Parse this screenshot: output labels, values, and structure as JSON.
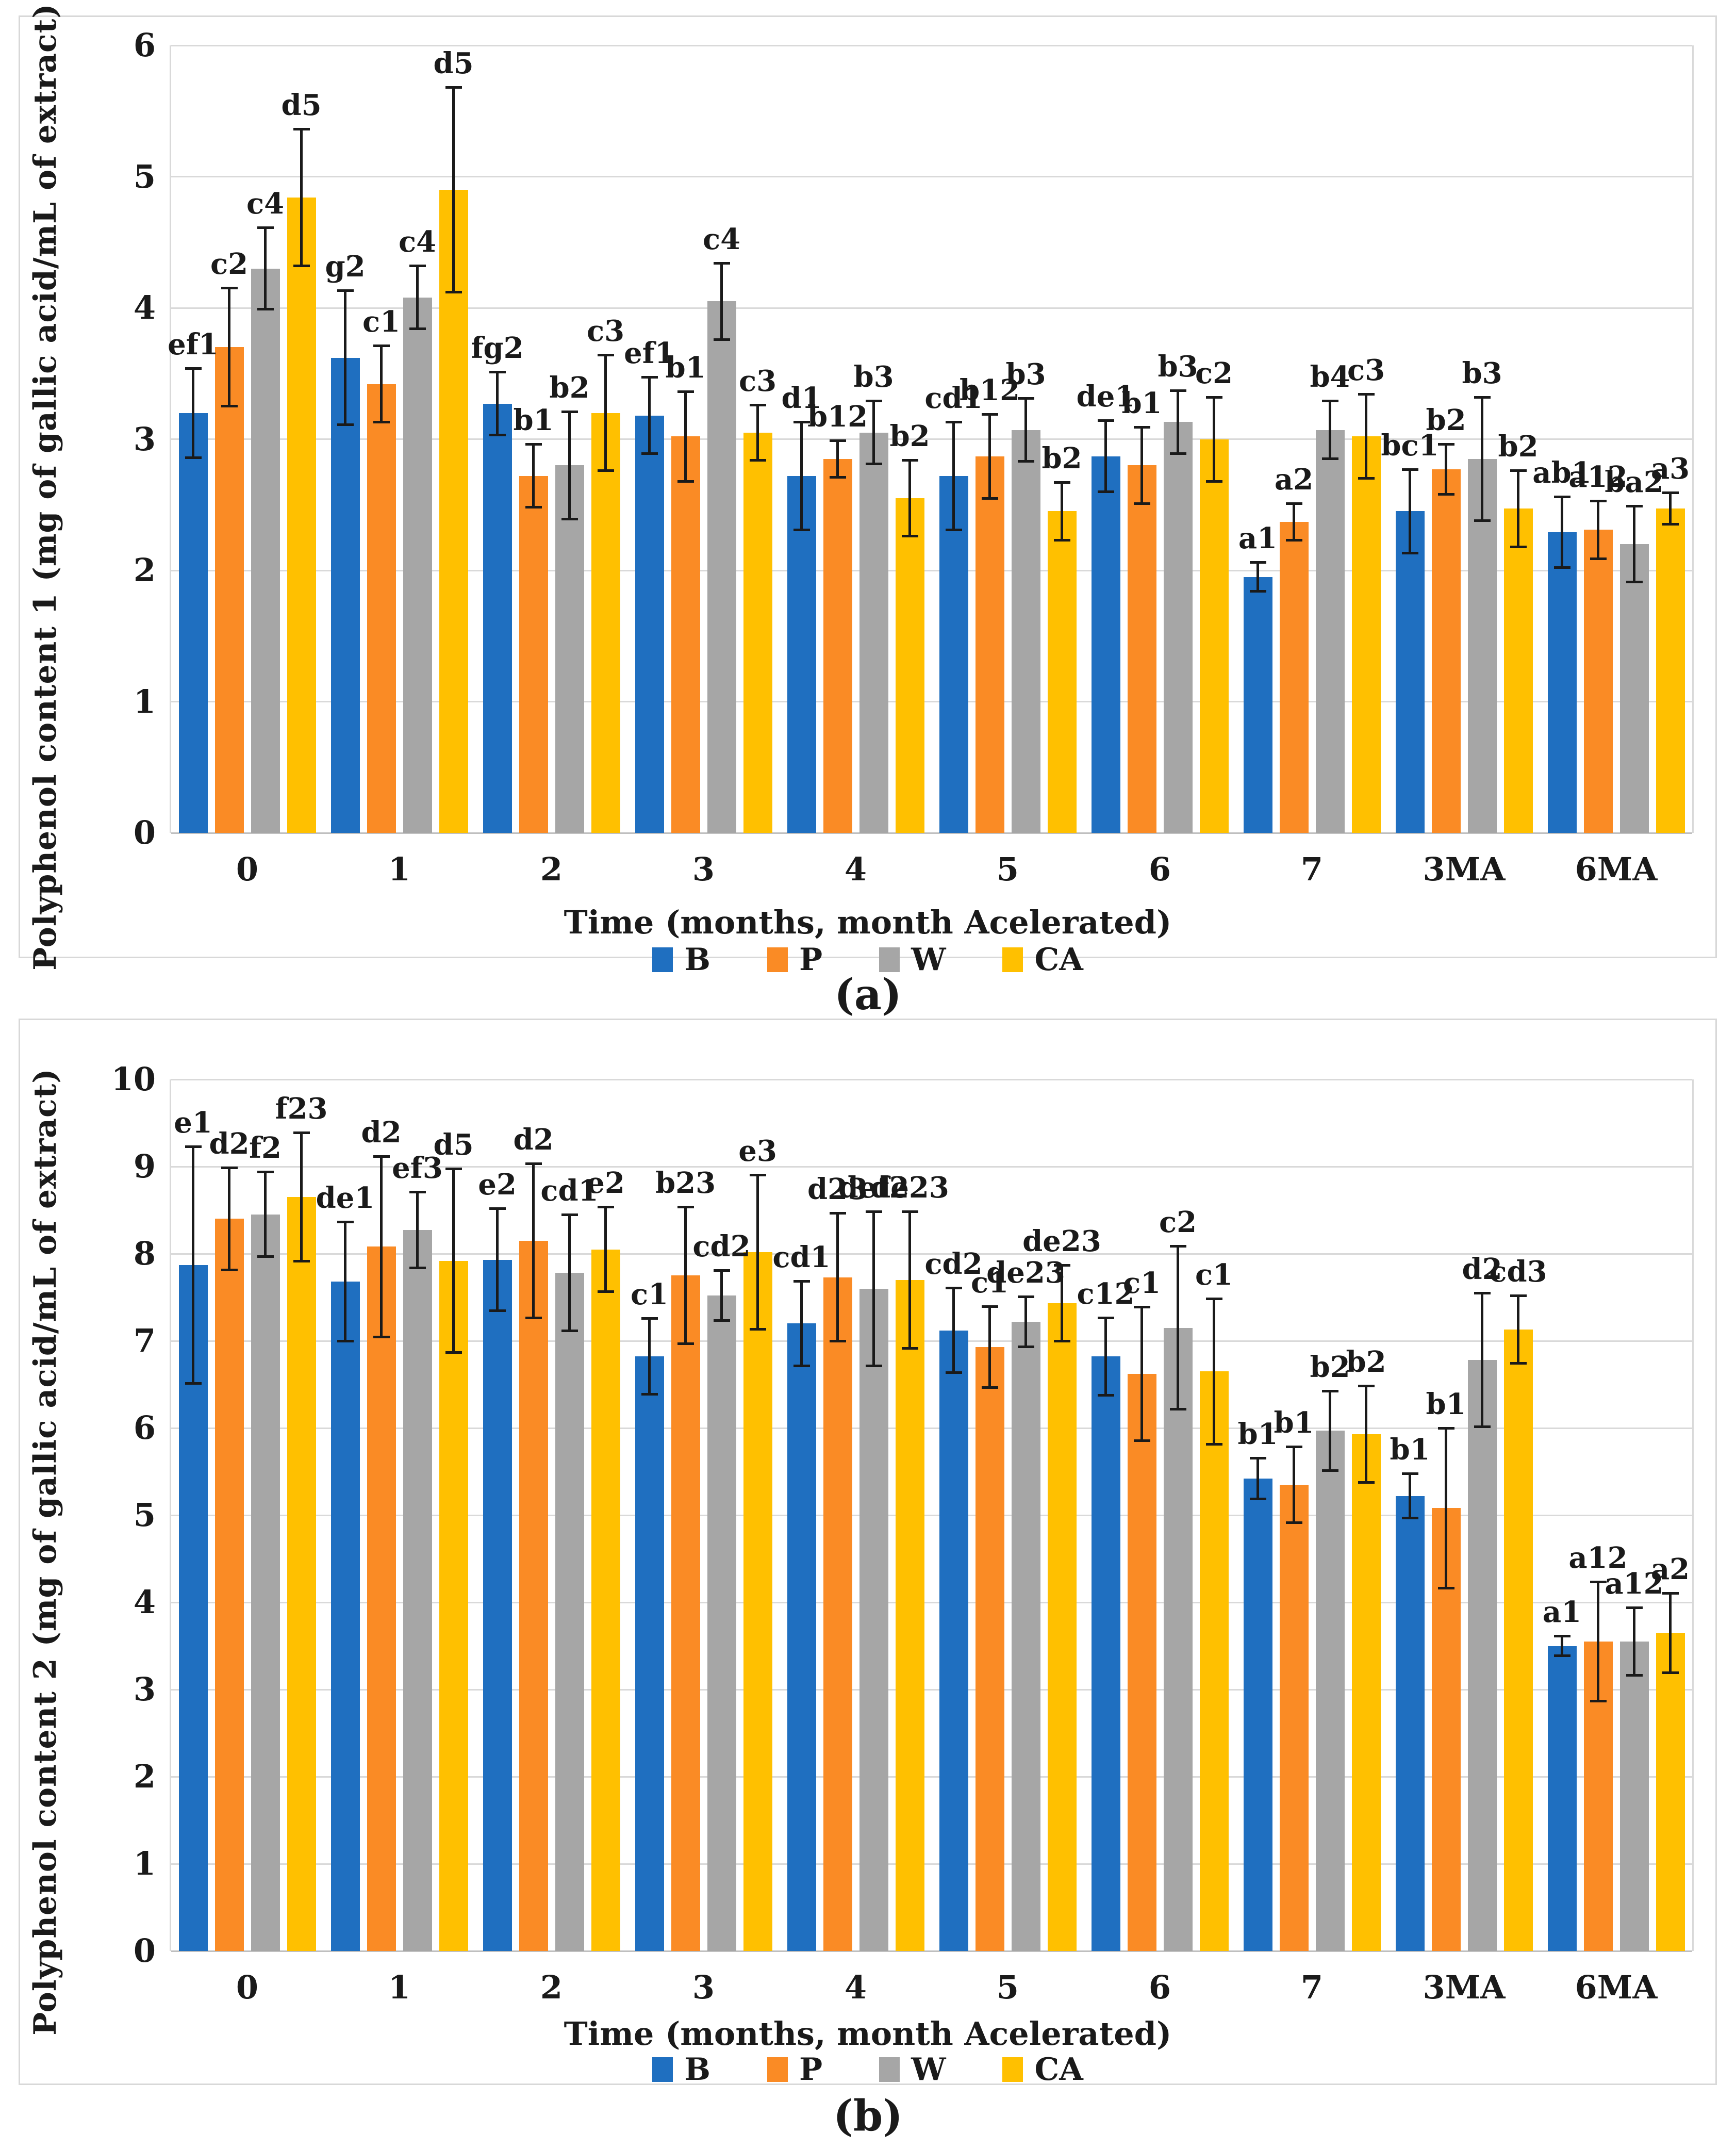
{
  "captions": {
    "a": "(a)",
    "b": "(b)"
  },
  "chart_data": [
    {
      "type": "bar",
      "panel": "a",
      "xlabel": "Time (months, month Acelerated)",
      "ylabel": "Polyphenol content 1 (mg of gallic acid/mL of extract)",
      "ylim": [
        0,
        6
      ],
      "ytick_step": 1,
      "grid": true,
      "legend_position": "bottom",
      "categories": [
        "0",
        "1",
        "2",
        "3",
        "4",
        "5",
        "6",
        "7",
        "3MA",
        "6MA"
      ],
      "series": [
        {
          "name": "B",
          "color": "#1F6FC0",
          "values": [
            3.2,
            3.62,
            3.27,
            3.18,
            2.72,
            2.72,
            2.87,
            1.95,
            2.45,
            2.29
          ],
          "errors": [
            0.35,
            0.52,
            0.25,
            0.3,
            0.42,
            0.42,
            0.28,
            0.12,
            0.33,
            0.28
          ],
          "labels": [
            "ef1",
            "g2",
            "fg2",
            "ef1",
            "d1",
            "cd1",
            "de1",
            "a1",
            "bc1",
            "ab1"
          ]
        },
        {
          "name": "P",
          "color": "#FA8B25",
          "values": [
            3.7,
            3.42,
            2.72,
            3.02,
            2.85,
            2.87,
            2.8,
            2.37,
            2.77,
            2.31
          ],
          "errors": [
            0.46,
            0.3,
            0.25,
            0.35,
            0.15,
            0.33,
            0.3,
            0.15,
            0.2,
            0.23
          ],
          "labels": [
            "c2",
            "c1",
            "b1",
            "b1",
            "b12",
            "b12",
            "b1",
            "a2",
            "b2",
            "a12"
          ]
        },
        {
          "name": "W",
          "color": "#A6A6A6",
          "values": [
            4.3,
            4.08,
            2.8,
            4.05,
            3.05,
            3.07,
            3.13,
            3.07,
            2.85,
            2.2
          ],
          "errors": [
            0.32,
            0.25,
            0.42,
            0.3,
            0.25,
            0.25,
            0.25,
            0.23,
            0.48,
            0.3
          ],
          "labels": [
            "c4",
            "c4",
            "b2",
            "c4",
            "b3",
            "b3",
            "b3",
            "b4",
            "b3",
            "ba2"
          ]
        },
        {
          "name": "CA",
          "color": "#FFC000",
          "values": [
            4.84,
            4.9,
            3.2,
            3.05,
            2.55,
            2.45,
            3.0,
            3.02,
            2.47,
            2.47
          ],
          "errors": [
            0.53,
            0.79,
            0.45,
            0.22,
            0.3,
            0.23,
            0.33,
            0.33,
            0.3,
            0.13
          ],
          "labels": [
            "d5",
            "d5",
            "c3",
            "c3",
            "b2",
            "b2",
            "c2",
            "c3",
            "b2",
            "a3"
          ]
        }
      ]
    },
    {
      "type": "bar",
      "panel": "b",
      "xlabel": "Time (months, month Acelerated)",
      "ylabel": "Polyphenol content 2 (mg of gallic acid/mL of extract)",
      "ylim": [
        0,
        10
      ],
      "ytick_step": 1,
      "grid": true,
      "legend_position": "bottom",
      "categories": [
        "0",
        "1",
        "2",
        "3",
        "4",
        "5",
        "6",
        "7",
        "3MA",
        "6MA"
      ],
      "series": [
        {
          "name": "B",
          "color": "#1F6FC0",
          "values": [
            7.87,
            7.68,
            7.93,
            6.82,
            7.2,
            7.12,
            6.82,
            5.42,
            5.22,
            3.5
          ],
          "errors": [
            1.37,
            0.7,
            0.6,
            0.45,
            0.5,
            0.5,
            0.46,
            0.25,
            0.27,
            0.13
          ],
          "labels": [
            "e1",
            "de1",
            "e2",
            "c1",
            "cd1",
            "cd2",
            "c12",
            "b1",
            "b1",
            "a1"
          ]
        },
        {
          "name": "P",
          "color": "#FA8B25",
          "values": [
            8.4,
            8.08,
            8.15,
            7.75,
            7.73,
            6.93,
            6.62,
            5.35,
            5.08,
            3.55
          ],
          "errors": [
            0.6,
            1.05,
            0.9,
            0.8,
            0.75,
            0.48,
            0.78,
            0.45,
            0.93,
            0.7
          ],
          "labels": [
            "d2",
            "d2",
            "d2",
            "b23",
            "d23",
            "c1",
            "c1",
            "b1",
            "b1",
            "a12"
          ]
        },
        {
          "name": "W",
          "color": "#A6A6A6",
          "values": [
            8.45,
            8.27,
            7.78,
            7.52,
            7.6,
            7.22,
            7.15,
            5.97,
            6.78,
            3.55
          ],
          "errors": [
            0.5,
            0.45,
            0.68,
            0.3,
            0.9,
            0.3,
            0.95,
            0.47,
            0.78,
            0.4
          ],
          "labels": [
            "f2",
            "ef3",
            "cd1",
            "cd2",
            "def2",
            "de23",
            "c2",
            "b2",
            "d2",
            "a12"
          ]
        },
        {
          "name": "CA",
          "color": "#FFC000",
          "values": [
            8.65,
            7.92,
            8.05,
            8.02,
            7.7,
            7.43,
            6.65,
            5.93,
            7.13,
            3.65
          ],
          "errors": [
            0.75,
            1.07,
            0.5,
            0.9,
            0.8,
            0.45,
            0.85,
            0.57,
            0.4,
            0.47
          ],
          "labels": [
            "f23",
            "d5",
            "e2",
            "e3",
            "de23",
            "de23",
            "c1",
            "b2",
            "cd3",
            "a2"
          ]
        }
      ]
    }
  ]
}
